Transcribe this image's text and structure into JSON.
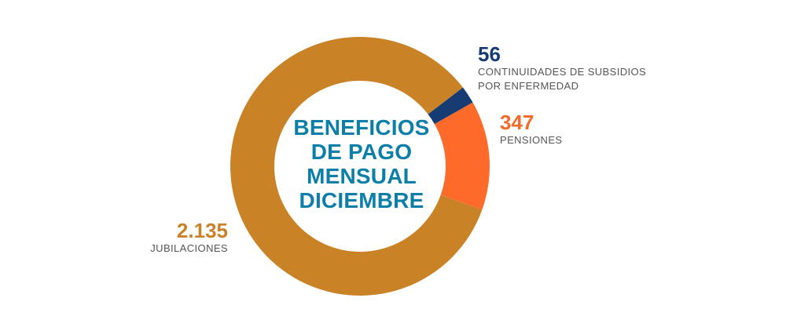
{
  "chart_data": {
    "type": "pie",
    "style": "donut",
    "title_lines": [
      "BENEFICIOS",
      "DE PAGO",
      "MENSUAL",
      "DICIEMBRE"
    ],
    "slices": [
      {
        "key": "subsidios",
        "value": 56,
        "value_label": "56",
        "label_lines": [
          "CONTINUIDADES DE SUBSIDIOS",
          "POR ENFERMEDAD"
        ],
        "color": "#173c74"
      },
      {
        "key": "pensiones",
        "value": 347,
        "value_label": "347",
        "label_lines": [
          "PENSIONES"
        ],
        "color": "#fd6a2a"
      },
      {
        "key": "jubilaciones",
        "value": 2135,
        "value_label": "2.135",
        "label_lines": [
          "JUBILACIONES"
        ],
        "color": "#c98226"
      }
    ]
  }
}
